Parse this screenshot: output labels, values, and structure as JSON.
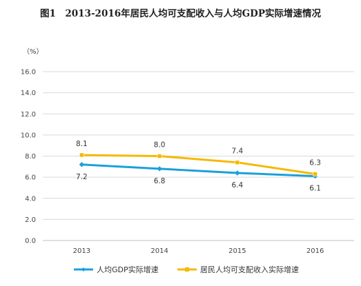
{
  "chart_data": {
    "type": "line",
    "title": "图1　2013-2016年居民人均可支配收入与人均GDP实际增速情况",
    "ylabel": "（%）",
    "xlabel": "",
    "categories": [
      "2013",
      "2014",
      "2015",
      "2016"
    ],
    "ylim": [
      0,
      16
    ],
    "yticks": [
      "0.0",
      "2.0",
      "4.0",
      "6.0",
      "8.0",
      "10.0",
      "12.0",
      "14.0",
      "16.0"
    ],
    "grid": true,
    "legend_position": "bottom",
    "series": [
      {
        "name": "人均GDP实际增速",
        "values": [
          7.2,
          6.8,
          6.4,
          6.1
        ],
        "labels": [
          "7.2",
          "6.8",
          "6.4",
          "6.1"
        ],
        "color": "#1aa0db",
        "marker": "diamond",
        "label_position": "below"
      },
      {
        "name": "居民人均可支配收入实际增速",
        "values": [
          8.1,
          8.0,
          7.4,
          6.3
        ],
        "labels": [
          "8.1",
          "8.0",
          "7.4",
          "6.3"
        ],
        "color": "#f6b800",
        "marker": "square",
        "label_position": "above"
      }
    ]
  }
}
